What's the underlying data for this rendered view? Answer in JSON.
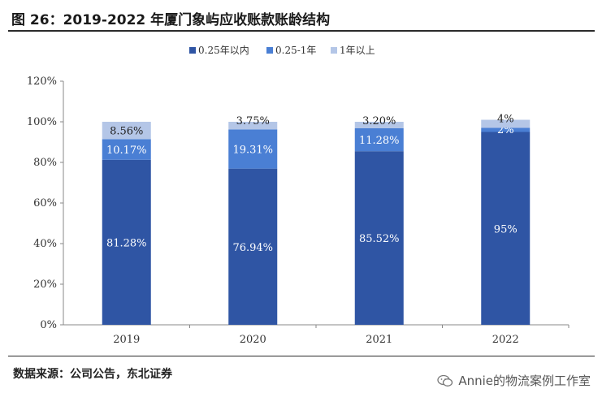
{
  "header": {
    "title": "图 26：2019-2022 年厦门象屿应收账款账龄结构"
  },
  "footer": {
    "source": "数据来源：公司公告，东北证券",
    "watermark": "Annie的物流案例工作室",
    "watermark_icon": "wechat-icon"
  },
  "chart_data": {
    "type": "bar",
    "stacked": true,
    "categories": [
      "2019",
      "2020",
      "2021",
      "2022"
    ],
    "series": [
      {
        "name": "0.25年以内",
        "color": "#2f55a4",
        "values": [
          81.28,
          76.94,
          85.52,
          95
        ],
        "labels": [
          "81.28%",
          "76.94%",
          "85.52%",
          "95%"
        ]
      },
      {
        "name": "0.25-1年",
        "color": "#4a7fd4",
        "values": [
          10.17,
          19.31,
          11.28,
          2
        ],
        "labels": [
          "10.17%",
          "19.31%",
          "11.28%",
          "2%"
        ]
      },
      {
        "name": "1年以上",
        "color": "#b4c6e7",
        "values": [
          8.56,
          3.75,
          3.2,
          4
        ],
        "labels": [
          "8.56%",
          "3.75%",
          "3.20%",
          "4%"
        ]
      }
    ],
    "ylim": [
      0,
      120
    ],
    "yticks": [
      "0%",
      "20%",
      "40%",
      "60%",
      "80%",
      "100%",
      "120%"
    ],
    "legend_position": "top-center",
    "grid": false
  }
}
